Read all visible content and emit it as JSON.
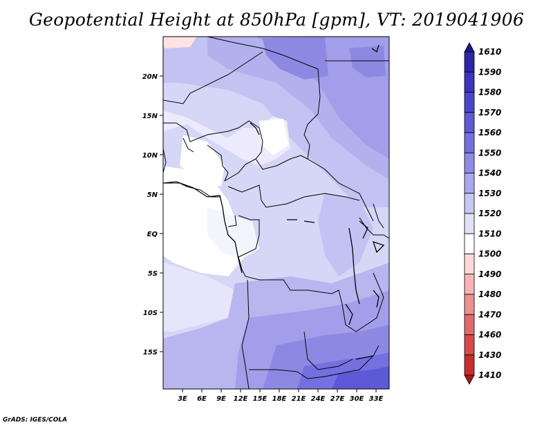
{
  "title": "Geopotential Height at 850hPa [gpm], VT: 2019041906",
  "footer": "GrADS: IGES/COLA",
  "map": {
    "lat_ticks": [
      "20N",
      "15N",
      "10N",
      "5N",
      "EQ",
      "5S",
      "10S",
      "15S"
    ],
    "lon_ticks": [
      "3E",
      "6E",
      "9E",
      "12E",
      "15E",
      "18E",
      "21E",
      "24E",
      "27E",
      "30E",
      "33E"
    ]
  },
  "colorbar": {
    "labels": [
      "1610",
      "1590",
      "1580",
      "1570",
      "1560",
      "1550",
      "1540",
      "1530",
      "1520",
      "1510",
      "1500",
      "1490",
      "1480",
      "1470",
      "1460",
      "1430",
      "1410"
    ],
    "colors": [
      "#1f1a8a",
      "#2a27a8",
      "#3a34c0",
      "#4a45cc",
      "#5e59d6",
      "#7570df",
      "#8f8ae6",
      "#aba7ee",
      "#c8c6f4",
      "#e2e1f8",
      "#ffffff",
      "#ffd9d9",
      "#f8b4b4",
      "#ee8e8e",
      "#e26a6a",
      "#d64a4a",
      "#c72e2e",
      "#b01818"
    ]
  }
}
